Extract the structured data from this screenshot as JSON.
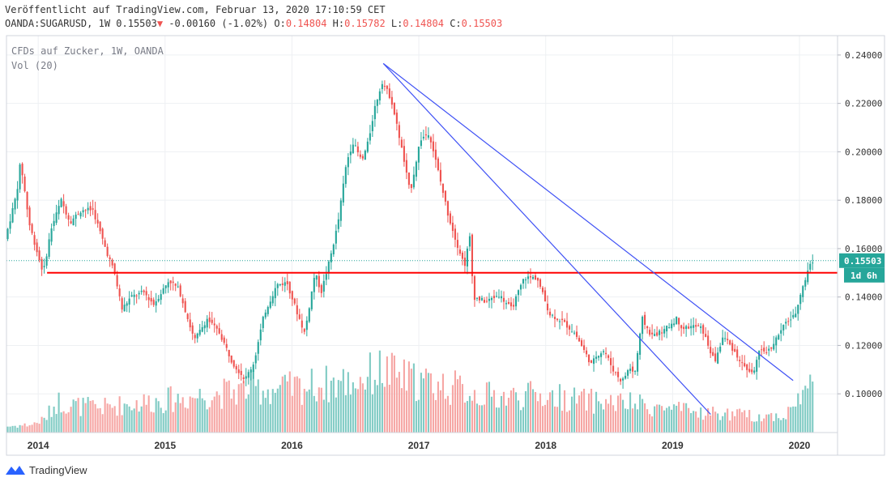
{
  "header": {
    "published": "Veröffentlicht auf TradingView.com, Februar 13, 2020 17:10:59 CET",
    "symbol": "OANDA:SUGARUSD, 1W",
    "last": "0.15503",
    "change": "-0.00160 (-1.02%)",
    "o_label": "O:",
    "o_value": "0.14804",
    "h_label": "H:",
    "h_value": "0.15782",
    "l_label": "L:",
    "l_value": "0.14804",
    "c_label": "C:",
    "c_value": "0.15503"
  },
  "legend": {
    "title": "CFDs auf Zucker, 1W, OANDA",
    "volume": "Vol (20)"
  },
  "price_tag": "0.15503",
  "countdown_tag": "1d 6h",
  "footer": {
    "brand": "TradingView"
  },
  "colors": {
    "up": "#26a69a",
    "down": "#ef5350",
    "up_vol": "#80cbc4",
    "down_vol": "#f6a6a4",
    "trendline": "#3f51f5",
    "horizontal": "#ff0000",
    "grid": "#eef0f3"
  },
  "chart_data": {
    "type": "candlestick",
    "x_axis": {
      "start": 2013.75,
      "end": 2020.3,
      "ticks": [
        "2014",
        "2015",
        "2016",
        "2017",
        "2018",
        "2019",
        "2020"
      ],
      "tick_values": [
        2014,
        2015,
        2016,
        2017,
        2018,
        2019,
        2020
      ]
    },
    "y_axis": {
      "min": 0.084,
      "max": 0.248,
      "ticks": [
        "0.10000",
        "0.12000",
        "0.14000",
        "0.16000",
        "0.18000",
        "0.20000",
        "0.22000",
        "0.24000"
      ],
      "tick_values": [
        0.1,
        0.12,
        0.14,
        0.16,
        0.18,
        0.2,
        0.22,
        0.24
      ]
    },
    "last_price": 0.15503,
    "horizontal_line": 0.15,
    "trendlines": [
      {
        "from": [
          2016.72,
          0.2365
        ],
        "to": [
          2019.3,
          0.0915
        ]
      },
      {
        "from": [
          2016.72,
          0.2365
        ],
        "to": [
          2019.95,
          0.1055
        ]
      }
    ],
    "price_keypoints": [
      [
        2013.76,
        0.164
      ],
      [
        2013.85,
        0.183
      ],
      [
        2013.88,
        0.196
      ],
      [
        2013.95,
        0.17
      ],
      [
        2014.03,
        0.155
      ],
      [
        2014.06,
        0.15
      ],
      [
        2014.12,
        0.168
      ],
      [
        2014.2,
        0.18
      ],
      [
        2014.27,
        0.171
      ],
      [
        2014.36,
        0.176
      ],
      [
        2014.45,
        0.176
      ],
      [
        2014.55,
        0.16
      ],
      [
        2014.62,
        0.15
      ],
      [
        2014.68,
        0.135
      ],
      [
        2014.75,
        0.14
      ],
      [
        2014.85,
        0.142
      ],
      [
        2014.93,
        0.137
      ],
      [
        2015.05,
        0.147
      ],
      [
        2015.13,
        0.143
      ],
      [
        2015.25,
        0.122
      ],
      [
        2015.35,
        0.131
      ],
      [
        2015.45,
        0.125
      ],
      [
        2015.55,
        0.113
      ],
      [
        2015.65,
        0.106
      ],
      [
        2015.72,
        0.113
      ],
      [
        2015.8,
        0.133
      ],
      [
        2015.9,
        0.145
      ],
      [
        2015.98,
        0.146
      ],
      [
        2016.05,
        0.135
      ],
      [
        2016.12,
        0.125
      ],
      [
        2016.2,
        0.15
      ],
      [
        2016.25,
        0.142
      ],
      [
        2016.32,
        0.156
      ],
      [
        2016.38,
        0.17
      ],
      [
        2016.45,
        0.196
      ],
      [
        2016.5,
        0.204
      ],
      [
        2016.57,
        0.196
      ],
      [
        2016.62,
        0.204
      ],
      [
        2016.67,
        0.218
      ],
      [
        2016.73,
        0.229
      ],
      [
        2016.8,
        0.222
      ],
      [
        2016.87,
        0.205
      ],
      [
        2016.95,
        0.183
      ],
      [
        2017.03,
        0.205
      ],
      [
        2017.1,
        0.208
      ],
      [
        2017.18,
        0.19
      ],
      [
        2017.25,
        0.174
      ],
      [
        2017.32,
        0.162
      ],
      [
        2017.38,
        0.153
      ],
      [
        2017.42,
        0.165
      ],
      [
        2017.45,
        0.14
      ],
      [
        2017.55,
        0.138
      ],
      [
        2017.65,
        0.141
      ],
      [
        2017.75,
        0.135
      ],
      [
        2017.85,
        0.148
      ],
      [
        2017.95,
        0.148
      ],
      [
        2018.05,
        0.133
      ],
      [
        2018.15,
        0.13
      ],
      [
        2018.25,
        0.125
      ],
      [
        2018.32,
        0.118
      ],
      [
        2018.38,
        0.112
      ],
      [
        2018.42,
        0.116
      ],
      [
        2018.48,
        0.118
      ],
      [
        2018.55,
        0.11
      ],
      [
        2018.62,
        0.105
      ],
      [
        2018.68,
        0.111
      ],
      [
        2018.72,
        0.108
      ],
      [
        2018.78,
        0.131
      ],
      [
        2018.85,
        0.124
      ],
      [
        2018.95,
        0.126
      ],
      [
        2019.05,
        0.131
      ],
      [
        2019.1,
        0.127
      ],
      [
        2019.18,
        0.128
      ],
      [
        2019.25,
        0.127
      ],
      [
        2019.35,
        0.113
      ],
      [
        2019.42,
        0.124
      ],
      [
        2019.5,
        0.118
      ],
      [
        2019.57,
        0.112
      ],
      [
        2019.65,
        0.108
      ],
      [
        2019.7,
        0.117
      ],
      [
        2019.78,
        0.118
      ],
      [
        2019.85,
        0.124
      ],
      [
        2019.92,
        0.13
      ],
      [
        2019.98,
        0.132
      ],
      [
        2020.03,
        0.142
      ],
      [
        2020.07,
        0.148
      ],
      [
        2020.11,
        0.155
      ]
    ],
    "volume_keypoints": [
      [
        2013.76,
        0.07
      ],
      [
        2013.95,
        0.09
      ],
      [
        2014.05,
        0.15
      ],
      [
        2014.15,
        0.35
      ],
      [
        2014.3,
        0.3
      ],
      [
        2014.5,
        0.28
      ],
      [
        2014.7,
        0.32
      ],
      [
        2014.9,
        0.35
      ],
      [
        2015.1,
        0.38
      ],
      [
        2015.3,
        0.42
      ],
      [
        2015.5,
        0.45
      ],
      [
        2015.7,
        0.5
      ],
      [
        2015.9,
        0.48
      ],
      [
        2016.1,
        0.52
      ],
      [
        2016.3,
        0.55
      ],
      [
        2016.5,
        0.58
      ],
      [
        2016.7,
        0.7
      ],
      [
        2016.9,
        0.6
      ],
      [
        2017.1,
        0.55
      ],
      [
        2017.3,
        0.5
      ],
      [
        2017.5,
        0.42
      ],
      [
        2017.7,
        0.4
      ],
      [
        2017.9,
        0.42
      ],
      [
        2018.1,
        0.4
      ],
      [
        2018.3,
        0.36
      ],
      [
        2018.5,
        0.34
      ],
      [
        2018.7,
        0.32
      ],
      [
        2018.9,
        0.28
      ],
      [
        2019.1,
        0.24
      ],
      [
        2019.3,
        0.22
      ],
      [
        2019.5,
        0.2
      ],
      [
        2019.7,
        0.18
      ],
      [
        2019.9,
        0.2
      ],
      [
        2020.0,
        0.4
      ],
      [
        2020.11,
        0.55
      ]
    ]
  }
}
